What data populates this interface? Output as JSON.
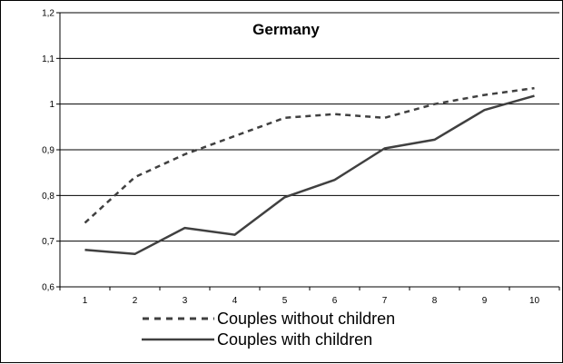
{
  "chart_data": {
    "type": "line",
    "title": "Germany",
    "xlabel": "",
    "ylabel": "",
    "x": [
      1,
      2,
      3,
      4,
      5,
      6,
      7,
      8,
      9,
      10
    ],
    "ylim": [
      0.6,
      1.2
    ],
    "yticks": [
      "0,6",
      "0,7",
      "0,8",
      "0,9",
      "1",
      "1,1",
      "1,2"
    ],
    "xticks": [
      "1",
      "2",
      "3",
      "4",
      "5",
      "6",
      "7",
      "8",
      "9",
      "10"
    ],
    "grid": true,
    "legend_position": "bottom",
    "series": [
      {
        "name": "Couples without children",
        "style": "dashed",
        "color": "#404040",
        "values": [
          0.74,
          0.84,
          0.89,
          0.93,
          0.97,
          0.978,
          0.97,
          1.0,
          1.02,
          1.035
        ]
      },
      {
        "name": "Couples with children",
        "style": "solid",
        "color": "#404040",
        "values": [
          0.681,
          0.672,
          0.729,
          0.714,
          0.796,
          0.834,
          0.903,
          0.922,
          0.987,
          1.018
        ]
      }
    ]
  }
}
